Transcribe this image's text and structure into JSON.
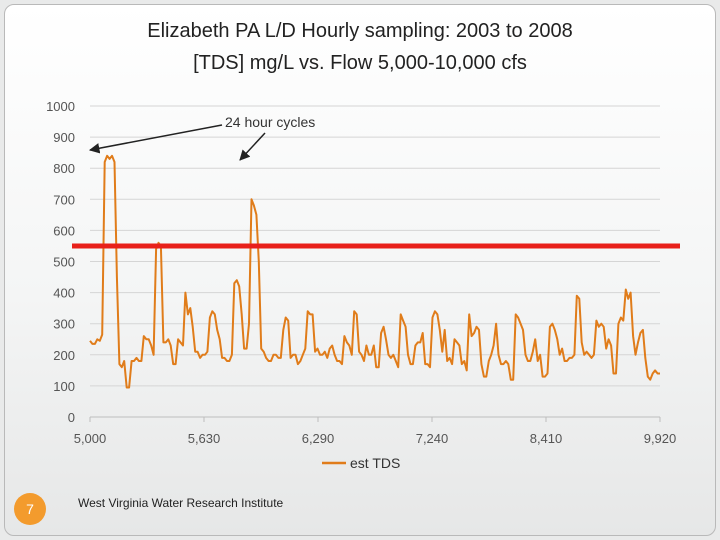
{
  "slide": {
    "title_line1": "Elizabeth PA L/D Hourly sampling:  2003 to 2008",
    "title_line2": "[TDS] mg/L vs. Flow 5,000-10,000 cfs",
    "page_number": "7",
    "footer": "West Virginia Water Research Institute"
  },
  "colors": {
    "series": "#e07c1a",
    "threshold": "#e8201a",
    "badge": "#f39b2d"
  },
  "chart_data": {
    "type": "line",
    "title": "",
    "xlabel": "",
    "ylabel": "",
    "ylim": [
      0,
      1000
    ],
    "yticks": [
      "0",
      "100",
      "200",
      "300",
      "400",
      "500",
      "600",
      "700",
      "800",
      "900",
      "1000"
    ],
    "xticks": [
      "5,000",
      "5,630",
      "6,290",
      "7,240",
      "8,410",
      "9,920"
    ],
    "legend": "bottom",
    "grid": true,
    "threshold": 550,
    "annotation": "24 hour cycles",
    "series": [
      {
        "name": "est TDS",
        "values": [
          245,
          235,
          235,
          250,
          245,
          265,
          820,
          840,
          830,
          840,
          820,
          450,
          170,
          160,
          180,
          95,
          95,
          180,
          180,
          190,
          180,
          180,
          260,
          250,
          250,
          230,
          200,
          540,
          560,
          550,
          240,
          240,
          250,
          230,
          170,
          170,
          250,
          240,
          230,
          400,
          330,
          350,
          290,
          210,
          210,
          190,
          200,
          200,
          210,
          320,
          340,
          330,
          280,
          250,
          190,
          190,
          180,
          180,
          200,
          430,
          440,
          420,
          330,
          220,
          220,
          300,
          700,
          680,
          650,
          500,
          220,
          210,
          190,
          180,
          180,
          200,
          200,
          190,
          190,
          280,
          320,
          310,
          190,
          200,
          200,
          170,
          180,
          200,
          220,
          340,
          330,
          330,
          210,
          220,
          200,
          200,
          210,
          190,
          220,
          230,
          200,
          180,
          180,
          170,
          260,
          240,
          230,
          200,
          340,
          330,
          210,
          200,
          180,
          230,
          200,
          200,
          230,
          160,
          160,
          270,
          290,
          250,
          200,
          190,
          200,
          180,
          160,
          330,
          310,
          290,
          200,
          170,
          170,
          230,
          240,
          240,
          270,
          170,
          170,
          160,
          320,
          340,
          330,
          280,
          210,
          280,
          180,
          190,
          170,
          250,
          240,
          230,
          170,
          180,
          150,
          330,
          260,
          270,
          290,
          280,
          170,
          130,
          130,
          180,
          200,
          230,
          300,
          200,
          170,
          170,
          180,
          170,
          120,
          120,
          330,
          320,
          300,
          280,
          200,
          180,
          180,
          210,
          250,
          180,
          200,
          130,
          130,
          140,
          290,
          300,
          280,
          250,
          200,
          220,
          180,
          180,
          190,
          190,
          200,
          390,
          380,
          240,
          200,
          210,
          200,
          190,
          200,
          310,
          290,
          300,
          290,
          220,
          250,
          230,
          140,
          140,
          300,
          320,
          310,
          410,
          380,
          400,
          260,
          200,
          240,
          270,
          280,
          190,
          130,
          120,
          140,
          150,
          140,
          140
        ]
      }
    ]
  }
}
